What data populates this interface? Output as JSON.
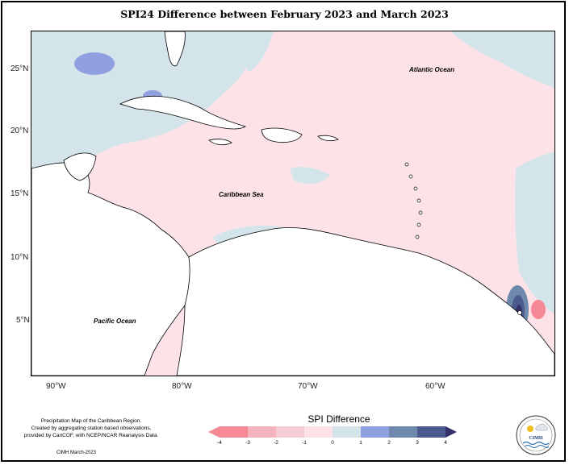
{
  "title": "SPI24 Difference between February 2023 and March 2023",
  "axes": {
    "lat_ticks": [
      "25°N",
      "20°N",
      "15°N",
      "10°N",
      "5°N"
    ],
    "lon_ticks": [
      "90°W",
      "80°W",
      "70°W",
      "60°W"
    ]
  },
  "map_labels": {
    "atlantic": "Atlantic Ocean",
    "caribbean": "Caribbean Sea",
    "pacific": "Pacific Ocean"
  },
  "legend": {
    "title": "SPI Difference",
    "ticks": [
      "-4",
      "-3",
      "-2",
      "-1",
      "0",
      "1",
      "2",
      "3",
      "4"
    ],
    "colors": [
      "#f58a96",
      "#f5b3bb",
      "#f8ccd3",
      "#fde3e8",
      "#d3e5ea",
      "#8f9fe0",
      "#6f89ad",
      "#4c5b8d",
      "#35306a"
    ]
  },
  "credit": {
    "line1": "Precipitation Map of the Caribbean Region.",
    "line2": "Created by aggregating station based observations,",
    "line3": "provided by CariCOF, with NCEP/NCAR Reanalysis Data.",
    "date": "CIMH March-2023"
  },
  "logo": {
    "text": "CIMH"
  }
}
